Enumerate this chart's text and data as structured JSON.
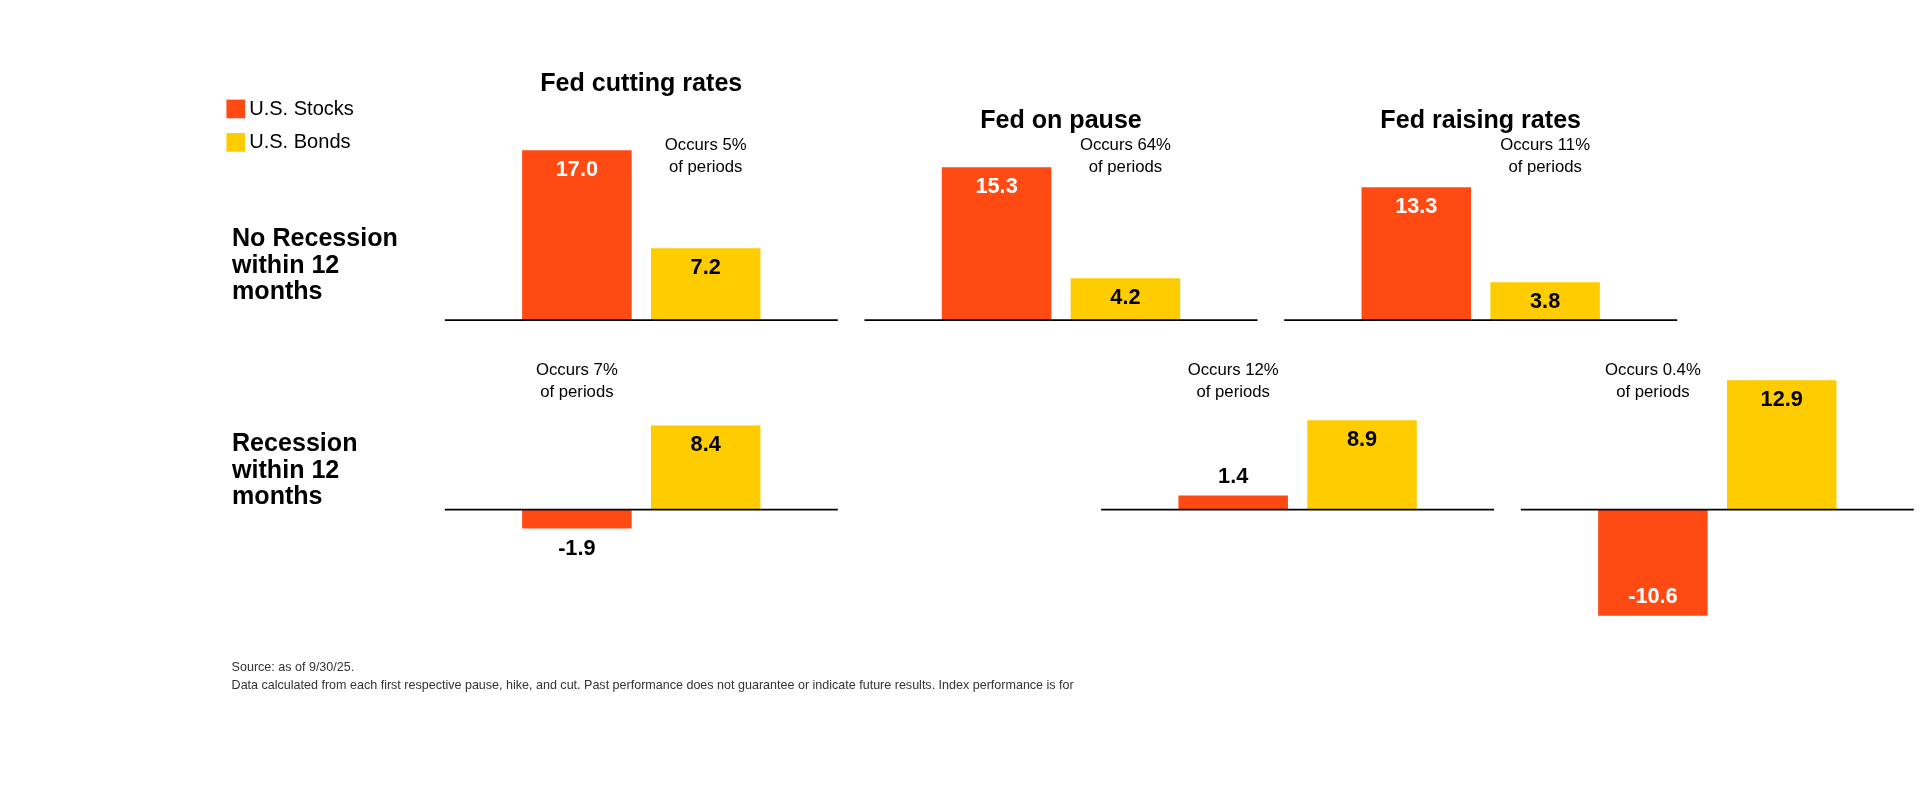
{
  "chart_data": [
    {
      "type": "bar",
      "title": "Fed cutting rates",
      "ylabel": "No Recession within 12 months",
      "categories": [
        null
      ],
      "series": [
        {
          "name": "U.S. Stocks",
          "color": "#ff4a14",
          "values": [
            17.0
          ],
          "value_labels": [
            "17.0"
          ]
        },
        {
          "name": "U.S. Bonds",
          "color": "#ffcc00",
          "values": [
            7.2
          ],
          "value_labels": [
            "7.2"
          ]
        }
      ],
      "tick_labels": false,
      "legend": "top left",
      "annotations": [
        "Occurs 5% of periods"
      ]
    },
    {
      "type": "bar",
      "title": "Fed on pause",
      "categories": [
        null
      ],
      "series": [
        {
          "color": "#ff4a14",
          "values": [
            15.3
          ],
          "value_labels": [
            "15.3"
          ]
        },
        {
          "color": "#ffcc00",
          "values": [
            4.2
          ],
          "value_labels": [
            "4.2"
          ]
        }
      ],
      "tick_labels": false,
      "annotations": [
        "Occurs 64% of periods"
      ]
    },
    {
      "type": "bar",
      "title": "Fed raising rates",
      "categories": [
        null
      ],
      "series": [
        {
          "color": "#ff4a14",
          "values": [
            13.3
          ],
          "value_labels": [
            "13.3"
          ]
        },
        {
          "color": "#ffcc00",
          "values": [
            3.8
          ],
          "value_labels": [
            "3.8"
          ]
        }
      ],
      "tick_labels": false,
      "annotations": [
        "Occurs 11% of periods"
      ]
    },
    {
      "type": "bar",
      "ylabel": "Recession within 12 months",
      "categories": [
        null
      ],
      "series": [
        {
          "color": "#ff4a14",
          "values": [
            -1.9
          ],
          "value_labels": [
            "-1.9"
          ]
        },
        {
          "color": "#ffcc00",
          "values": [
            8.4
          ],
          "value_labels": [
            "8.4"
          ]
        }
      ],
      "tick_labels": false,
      "annotations": [
        "Occurs 7% of periods",
        "Source: as of 9/30/25.",
        "Data calculated from each first respective pause, hike, and cut. Past performance does not guarantee or indicate future results. Index performance is for"
      ]
    },
    {
      "type": "bar",
      "categories": [
        null
      ],
      "series": [
        {
          "color": "#ff4a14",
          "values": [
            1.4
          ],
          "value_labels": [
            "1.4"
          ]
        },
        {
          "color": "#ffcc00",
          "values": [
            8.9
          ],
          "value_labels": [
            "8.9"
          ]
        }
      ],
      "tick_labels": false,
      "annotations": [
        "Occurs 12% of periods"
      ]
    },
    {
      "type": "bar",
      "categories": [
        null
      ],
      "series": [
        {
          "color": "#ff4a14",
          "values": [
            -10.6
          ],
          "value_labels": [
            "-10.6"
          ]
        },
        {
          "color": "#ffcc00",
          "values": [
            12.9
          ],
          "value_labels": [
            "12.9"
          ]
        }
      ],
      "tick_labels": false,
      "annotations": [
        "Occurs 0.4% of periods"
      ]
    }
  ]
}
